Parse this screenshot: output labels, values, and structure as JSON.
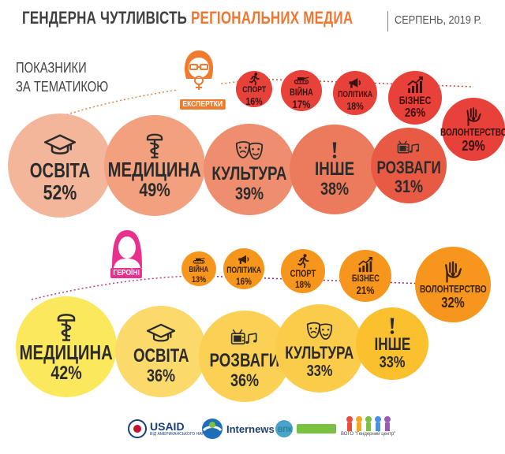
{
  "header": {
    "title_main": "ГЕНДЕРНА ЧУТЛИВІСТЬ",
    "title_sub": "РЕГІОНАЛЬНИХ МЕДИА",
    "date": "СЕРПЕНЬ, 2019 Р."
  },
  "section_label_line1": "ПОКАЗНИКИ",
  "section_label_line2": "ЗА ТЕМАТИКОЮ",
  "experts": {
    "label": "ЕКСПЕРТКИ",
    "color_main": "#ee6d35",
    "small": [
      {
        "label": "СПОРТ",
        "pct": "16%",
        "icon": "runner-icon"
      },
      {
        "label": "ВІЙНА",
        "pct": "17%",
        "icon": "tank-icon"
      },
      {
        "label": "ПОЛІТИКА",
        "pct": "18%",
        "icon": "megaphone-icon"
      },
      {
        "label": "БІЗНЕС",
        "pct": "26%",
        "icon": "growth-chart-icon"
      },
      {
        "label": "ВОЛОНТЕРСТВО",
        "pct": "29%",
        "icon": "heart-hand-icon"
      }
    ],
    "large": [
      {
        "label": "ОСВІТА",
        "pct": "52%",
        "icon": "graduation-cap-icon"
      },
      {
        "label": "МЕДИЦИНА",
        "pct": "49%",
        "icon": "medicine-icon"
      },
      {
        "label": "КУЛЬТУРА",
        "pct": "39%",
        "icon": "theater-masks-icon"
      },
      {
        "label": "ІНШЕ",
        "pct": "38%",
        "icon": "exclamation-icon"
      },
      {
        "label": "РОЗВАГИ",
        "pct": "31%",
        "icon": "tv-music-icon"
      }
    ]
  },
  "heroines": {
    "label": "ГЕРОЇНІ",
    "small": [
      {
        "label": "ВІЙНА",
        "pct": "13%",
        "icon": "tank-icon"
      },
      {
        "label": "ПОЛІТИКА",
        "pct": "16%",
        "icon": "megaphone-icon"
      },
      {
        "label": "СПОРТ",
        "pct": "18%",
        "icon": "runner-icon"
      },
      {
        "label": "БІЗНЕС",
        "pct": "21%",
        "icon": "growth-chart-icon"
      },
      {
        "label": "ВОЛОНТЕРСТВО",
        "pct": "32%",
        "icon": "heart-hand-icon"
      }
    ],
    "large": [
      {
        "label": "МЕДИЦИНА",
        "pct": "42%",
        "icon": "medicine-icon"
      },
      {
        "label": "ОСВІТА",
        "pct": "36%",
        "icon": "graduation-cap-icon"
      },
      {
        "label": "РОЗВАГИ",
        "pct": "36%",
        "icon": "tv-music-icon"
      },
      {
        "label": "КУЛЬТУРА",
        "pct": "33%",
        "icon": "theater-masks-icon"
      },
      {
        "label": "ІНШЕ",
        "pct": "33%",
        "icon": "exclamation-icon"
      }
    ]
  },
  "footer": {
    "usaid": "USAID",
    "usaid_sub": "ВІД АМЕРИКАНСЬКОГО НАРОДУ",
    "internews": "Internews",
    "vpk": "ВПК",
    "gcenter": "ВОГО \"Гендерний центр\""
  }
}
